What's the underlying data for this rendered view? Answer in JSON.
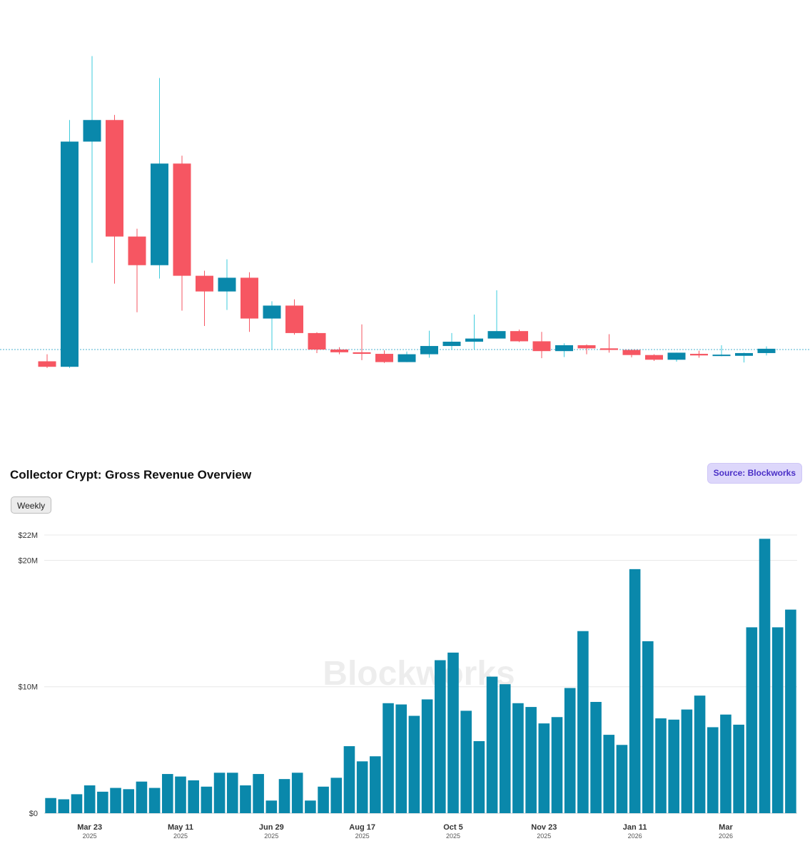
{
  "colors": {
    "up": "#0a88ab",
    "up_wick": "#3ecbdc",
    "down": "#f65662",
    "bar": "#0a88ab",
    "reference_line": "#4bb3d1",
    "grid": "#e8e8e8"
  },
  "header": {
    "title": "Collector Crypt: Gross Revenue Overview",
    "source_badge": "Source: Blockworks"
  },
  "controls": {
    "interval_label": "Weekly"
  },
  "chart_data": [
    {
      "type": "candlestick",
      "title": "",
      "note": "Price scale not labeled in the image; OHLC values are in arbitrary chart units (0 = bottom of plot, 100 = top).",
      "reference_level": 20,
      "candles": [
        {
          "o": 17.0,
          "h": 18.8,
          "l": 15.3,
          "c": 15.6
        },
        {
          "o": 15.6,
          "h": 78.5,
          "l": 15.3,
          "c": 73.0
        },
        {
          "o": 73.0,
          "h": 94.8,
          "l": 42.1,
          "c": 78.5
        },
        {
          "o": 78.5,
          "h": 79.8,
          "l": 36.8,
          "c": 48.8
        },
        {
          "o": 48.8,
          "h": 50.8,
          "l": 29.5,
          "c": 41.5
        },
        {
          "o": 41.5,
          "h": 89.2,
          "l": 38.1,
          "c": 67.4
        },
        {
          "o": 67.4,
          "h": 69.4,
          "l": 29.9,
          "c": 38.8
        },
        {
          "o": 38.8,
          "h": 40.1,
          "l": 26.0,
          "c": 34.8
        },
        {
          "o": 34.8,
          "h": 43.0,
          "l": 30.1,
          "c": 38.3
        },
        {
          "o": 38.3,
          "h": 39.7,
          "l": 24.5,
          "c": 27.9
        },
        {
          "o": 27.9,
          "h": 32.3,
          "l": 20.0,
          "c": 31.2
        },
        {
          "o": 31.2,
          "h": 32.8,
          "l": 23.8,
          "c": 24.2
        },
        {
          "o": 24.2,
          "h": 24.4,
          "l": 19.1,
          "c": 20.0
        },
        {
          "o": 20.0,
          "h": 20.6,
          "l": 18.8,
          "c": 19.3
        },
        {
          "o": 19.3,
          "h": 26.4,
          "l": 17.3,
          "c": 18.9
        },
        {
          "o": 18.9,
          "h": 19.8,
          "l": 16.6,
          "c": 16.8
        },
        {
          "o": 16.8,
          "h": 19.5,
          "l": 16.8,
          "c": 18.8
        },
        {
          "o": 18.8,
          "h": 24.8,
          "l": 17.9,
          "c": 20.9
        },
        {
          "o": 20.9,
          "h": 24.2,
          "l": 19.9,
          "c": 22.0
        },
        {
          "o": 22.0,
          "h": 28.9,
          "l": 19.9,
          "c": 22.8
        },
        {
          "o": 22.8,
          "h": 35.1,
          "l": 22.8,
          "c": 24.7
        },
        {
          "o": 24.7,
          "h": 25.1,
          "l": 21.9,
          "c": 22.1
        },
        {
          "o": 22.1,
          "h": 24.5,
          "l": 17.8,
          "c": 19.6
        },
        {
          "o": 19.6,
          "h": 21.6,
          "l": 18.1,
          "c": 21.1
        },
        {
          "o": 21.1,
          "h": 21.3,
          "l": 18.8,
          "c": 20.3
        },
        {
          "o": 20.3,
          "h": 23.9,
          "l": 19.2,
          "c": 19.9
        },
        {
          "o": 19.9,
          "h": 19.9,
          "l": 18.0,
          "c": 18.6
        },
        {
          "o": 18.6,
          "h": 18.8,
          "l": 17.1,
          "c": 17.4
        },
        {
          "o": 17.4,
          "h": 19.2,
          "l": 16.9,
          "c": 19.2
        },
        {
          "o": 18.9,
          "h": 19.7,
          "l": 17.9,
          "c": 18.5
        },
        {
          "o": 18.5,
          "h": 21.1,
          "l": 18.3,
          "c": 18.7
        },
        {
          "o": 18.4,
          "h": 19.2,
          "l": 16.7,
          "c": 19.1
        },
        {
          "o": 19.1,
          "h": 20.8,
          "l": 18.5,
          "c": 20.2
        }
      ]
    },
    {
      "type": "bar",
      "title": "Collector Crypt: Gross Revenue Overview",
      "xlabel": "",
      "ylabel": "",
      "ylim": [
        0,
        22000000
      ],
      "y_ticks": [
        {
          "value": 0,
          "label": "$0"
        },
        {
          "value": 10000000,
          "label": "$10M"
        },
        {
          "value": 20000000,
          "label": "$20M"
        },
        {
          "value": 22000000,
          "label": "$22M"
        }
      ],
      "x_ticks": [
        {
          "index": 3,
          "label": "Mar 23",
          "sublabel": "2025"
        },
        {
          "index": 10,
          "label": "May 11",
          "sublabel": "2025"
        },
        {
          "index": 17,
          "label": "Jun 29",
          "sublabel": "2025"
        },
        {
          "index": 24,
          "label": "Aug 17",
          "sublabel": "2025"
        },
        {
          "index": 31,
          "label": "Oct 5",
          "sublabel": "2025"
        },
        {
          "index": 38,
          "label": "Nov 23",
          "sublabel": "2025"
        },
        {
          "index": 45,
          "label": "Jan 11",
          "sublabel": "2026"
        },
        {
          "index": 52,
          "label": "Mar",
          "sublabel": "2026"
        }
      ],
      "series": [
        {
          "name": "Gross Revenue",
          "values": [
            1200000,
            1100000,
            1500000,
            2200000,
            1700000,
            2000000,
            1900000,
            2500000,
            2000000,
            3100000,
            2900000,
            2600000,
            2100000,
            3200000,
            3200000,
            2200000,
            3100000,
            1000000,
            2700000,
            3200000,
            1000000,
            2100000,
            2800000,
            5300000,
            4100000,
            4500000,
            8700000,
            8600000,
            7700000,
            9000000,
            12100000,
            12700000,
            8100000,
            5700000,
            10800000,
            10200000,
            8700000,
            8400000,
            7100000,
            7600000,
            9900000,
            14400000,
            8800000,
            6200000,
            5400000,
            19300000,
            13600000,
            7500000,
            7400000,
            8200000,
            9300000,
            6800000,
            7800000,
            7000000,
            14700000,
            21700000,
            14700000,
            16100000
          ]
        }
      ]
    }
  ]
}
